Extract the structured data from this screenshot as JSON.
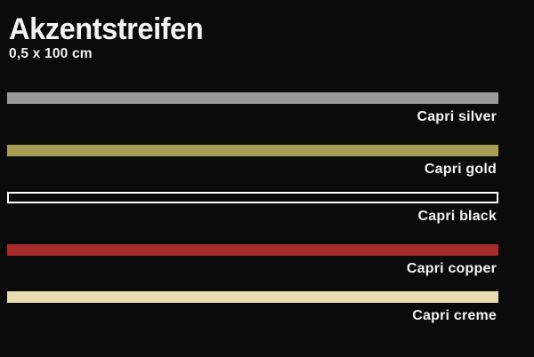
{
  "header": {
    "title": "Akzentstreifen",
    "subtitle": "0,5 x 100 cm"
  },
  "colors": {
    "background_hex": "#0b0b0b",
    "text_hex": "#f4f4f4"
  },
  "stripes": [
    {
      "label": "Capri silver",
      "color_hex": "#9a9a9a"
    },
    {
      "label": "Capri gold",
      "color_hex": "#a89b52"
    },
    {
      "label": "Capri black",
      "color_hex": "#0b0b0b",
      "border_hex": "#ffffff"
    },
    {
      "label": "Capri copper",
      "color_hex": "#a52a28"
    },
    {
      "label": "Capri creme",
      "color_hex": "#e9dcae"
    }
  ]
}
